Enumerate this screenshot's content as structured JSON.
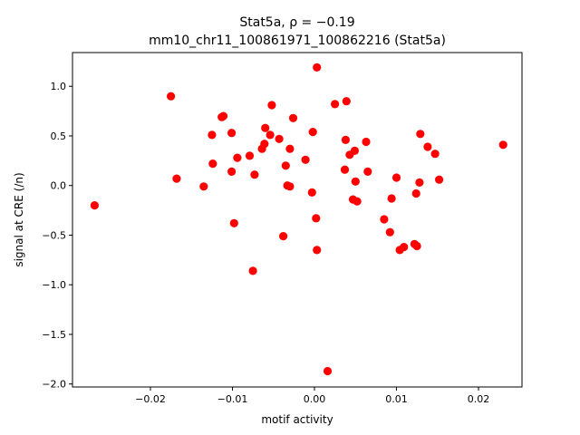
{
  "chart_data": {
    "type": "scatter",
    "title_line1": "Stat5a, ρ = −0.19",
    "title_line2": "mm10_chr11_100861971_100862216 (Stat5a)",
    "xlabel": "motif activity",
    "ylabel": "signal at CRE (/n)",
    "xlim": [
      -0.0295,
      0.0253
    ],
    "ylim": [
      -2.03,
      1.34
    ],
    "xticks": [
      -0.02,
      -0.01,
      0.0,
      0.01,
      0.02
    ],
    "xtick_labels": [
      "−0.02",
      "−0.01",
      "0.00",
      "0.01",
      "0.02"
    ],
    "yticks": [
      -2.0,
      -1.5,
      -1.0,
      -0.5,
      0.0,
      0.5,
      1.0
    ],
    "ytick_labels": [
      "−2.0",
      "−1.5",
      "−1.0",
      "−0.5",
      "0.0",
      "0.5",
      "1.0"
    ],
    "grid": false,
    "legend": "none",
    "marker_color": "#ff0000",
    "points": [
      [
        -0.0268,
        -0.2
      ],
      [
        -0.0175,
        0.9
      ],
      [
        -0.0168,
        0.07
      ],
      [
        -0.0135,
        -0.01
      ],
      [
        -0.0125,
        0.51
      ],
      [
        -0.0124,
        0.22
      ],
      [
        -0.0113,
        0.69
      ],
      [
        -0.0111,
        0.7
      ],
      [
        -0.0101,
        0.53
      ],
      [
        -0.0101,
        0.14
      ],
      [
        -0.0098,
        -0.38
      ],
      [
        -0.0094,
        0.28
      ],
      [
        -0.0079,
        0.3
      ],
      [
        -0.0075,
        -0.86
      ],
      [
        -0.0073,
        0.11
      ],
      [
        -0.0064,
        0.37
      ],
      [
        -0.0061,
        0.42
      ],
      [
        -0.006,
        0.58
      ],
      [
        -0.0054,
        0.51
      ],
      [
        -0.0052,
        0.81
      ],
      [
        -0.0043,
        0.47
      ],
      [
        -0.0038,
        -0.51
      ],
      [
        -0.0035,
        0.2
      ],
      [
        -0.0033,
        0.0
      ],
      [
        -0.003,
        -0.01
      ],
      [
        -0.003,
        0.37
      ],
      [
        -0.0026,
        0.68
      ],
      [
        -0.0011,
        0.26
      ],
      [
        -0.0003,
        -0.07
      ],
      [
        -0.0002,
        0.54
      ],
      [
        0.0002,
        -0.33
      ],
      [
        0.0003,
        -0.65
      ],
      [
        0.0003,
        1.19
      ],
      [
        0.0016,
        -1.87
      ],
      [
        0.0025,
        0.82
      ],
      [
        0.0037,
        0.16
      ],
      [
        0.0038,
        0.46
      ],
      [
        0.0039,
        0.85
      ],
      [
        0.0043,
        0.31
      ],
      [
        0.0047,
        -0.14
      ],
      [
        0.0049,
        0.35
      ],
      [
        0.005,
        0.04
      ],
      [
        0.0052,
        -0.16
      ],
      [
        0.0063,
        0.44
      ],
      [
        0.0065,
        0.14
      ],
      [
        0.0085,
        -0.34
      ],
      [
        0.0092,
        -0.47
      ],
      [
        0.0094,
        -0.13
      ],
      [
        0.01,
        0.08
      ],
      [
        0.0104,
        -0.65
      ],
      [
        0.0109,
        -0.62
      ],
      [
        0.0122,
        -0.59
      ],
      [
        0.0124,
        -0.08
      ],
      [
        0.0125,
        -0.61
      ],
      [
        0.0128,
        0.03
      ],
      [
        0.0129,
        0.52
      ],
      [
        0.0138,
        0.39
      ],
      [
        0.0147,
        0.32
      ],
      [
        0.0152,
        0.06
      ],
      [
        0.023,
        0.41
      ]
    ]
  }
}
